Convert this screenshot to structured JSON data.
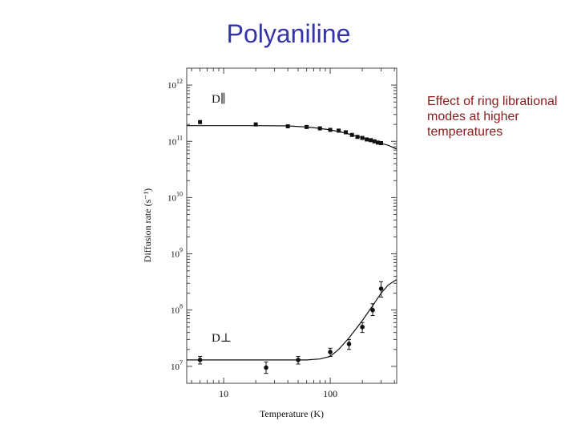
{
  "slide": {
    "title": "Polyaniline",
    "note": "Effect of ring librational modes at higher temperatures"
  },
  "chart_data": {
    "type": "scatter",
    "title": "",
    "xlabel": "Temperature (K)",
    "ylabel": "Diffusion rate (s⁻¹)",
    "xscale": "log",
    "yscale": "log",
    "xlim": [
      4.5,
      420
    ],
    "ylim": [
      5000000.0,
      2000000000000.0
    ],
    "x_ticks": [
      10,
      100
    ],
    "x_tick_labels": [
      "10",
      "100"
    ],
    "y_ticks": [
      10000000.0,
      100000000.0,
      1000000000.0,
      10000000000.0,
      100000000000.0,
      1000000000000.0
    ],
    "y_tick_exponents": [
      "7",
      "8",
      "9",
      "10",
      "11",
      "12"
    ],
    "y_tick_base": "10",
    "grid": false,
    "series": [
      {
        "name": "D∥",
        "label_position": "top-left",
        "x": [
          6,
          20,
          40,
          60,
          80,
          100,
          120,
          140,
          160,
          180,
          200,
          220,
          240,
          260,
          280,
          300
        ],
        "y": [
          220000000000.0,
          200000000000.0,
          185000000000.0,
          180000000000.0,
          170000000000.0,
          160000000000.0,
          155000000000.0,
          145000000000.0,
          130000000000.0,
          120000000000.0,
          115000000000.0,
          108000000000.0,
          105000000000.0,
          100000000000.0,
          95000000000.0,
          93000000000.0
        ],
        "fit": {
          "x": [
            4.5,
            10,
            20,
            40,
            60,
            80,
            100,
            130,
            160,
            200,
            250,
            300,
            350,
            420
          ],
          "y": [
            190000000000.0,
            190000000000.0,
            190000000000.0,
            188000000000.0,
            180000000000.0,
            170000000000.0,
            160000000000.0,
            145000000000.0,
            130000000000.0,
            116000000000.0,
            103000000000.0,
            92000000000.0,
            85000000000.0,
            73000000000.0
          ]
        }
      },
      {
        "name": "D⊥",
        "label_position": "bottom-left",
        "x": [
          6,
          25,
          50,
          100,
          150,
          200,
          250,
          300
        ],
        "y": [
          13000000.0,
          9500000.0,
          13000000.0,
          18000000.0,
          25000000.0,
          50000000.0,
          100000000.0,
          240000000.0
        ],
        "yerr_low": [
          11000000.0,
          7500000.0,
          11000000.0,
          15000000.0,
          20000000.0,
          40000000.0,
          80000000.0,
          170000000.0
        ],
        "yerr_high": [
          15000000.0,
          12000000.0,
          15000000.0,
          21000000.0,
          30000000.0,
          60000000.0,
          130000000.0,
          320000000.0
        ],
        "fit": {
          "x": [
            4.5,
            10,
            30,
            60,
            80,
            100,
            120,
            150,
            180,
            200,
            250,
            300,
            350,
            420
          ],
          "y": [
            13000000.0,
            13000000.0,
            13000000.0,
            13000000.0,
            13500000.0,
            15000000.0,
            20000000.0,
            32000000.0,
            50000000.0,
            65000000.0,
            120000000.0,
            200000000.0,
            280000000.0,
            350000000.0
          ]
        }
      }
    ]
  }
}
